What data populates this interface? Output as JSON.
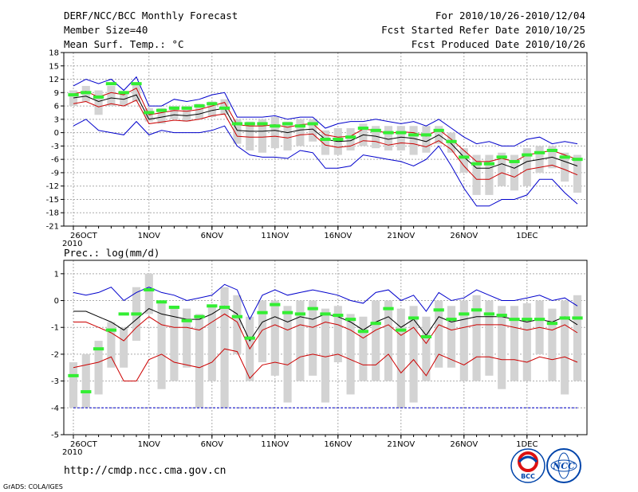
{
  "header": {
    "title": "DERF/NCC/BCC Monthly Forecast",
    "member_size": "Member Size=40",
    "variable_label": "Mean Surf. Temp.: °C",
    "forecast_range": "For 2010/10/26-2010/12/04",
    "fcst_started": "Fcst Started Refer Date 2010/10/25",
    "fcst_produced": "Fcst Produced Date 2010/10/26"
  },
  "footer": {
    "url": "http://cmdp.ncc.cma.gov.cn",
    "grads_credit": "GrADS: COLA/IGES",
    "logo_bcc_text": "BCC",
    "logo_ncc_text": "NCC"
  },
  "colors": {
    "grid": "#aaaaaa",
    "box": "#d3d3d3",
    "median": "#33ee33",
    "mean": "#000000",
    "red": "#cc0000",
    "blue": "#0000cc"
  },
  "chart_data": [
    {
      "type": "line",
      "title": "Mean Surf. Temp.: °C",
      "ylim": [
        -21,
        18
      ],
      "yticks": [
        "18",
        "15",
        "12",
        "9",
        "6",
        "3",
        "0",
        "-3",
        "-6",
        "-9",
        "-12",
        "-15",
        "-18",
        "-21"
      ],
      "xticks": [
        {
          "day": 0,
          "label": "26OCT"
        },
        {
          "day": 6,
          "label": "1NOV"
        },
        {
          "day": 11,
          "label": "6NOV"
        },
        {
          "day": 16,
          "label": "11NOV"
        },
        {
          "day": 21,
          "label": "16NOV"
        },
        {
          "day": 26,
          "label": "21NOV"
        },
        {
          "day": 31,
          "label": "26NOV"
        },
        {
          "day": 36,
          "label": "1DEC"
        }
      ],
      "year_label": "2010",
      "days": 40,
      "series": {
        "mean": [
          7.8,
          8.2,
          7.0,
          7.8,
          7.5,
          8.5,
          3.0,
          3.5,
          4.0,
          3.8,
          4.2,
          5.0,
          5.5,
          0.5,
          0.3,
          0.3,
          0.5,
          0.0,
          0.6,
          0.8,
          -1.5,
          -2.0,
          -1.8,
          -0.5,
          -0.8,
          -1.5,
          -1.0,
          -1.3,
          -2.0,
          -0.5,
          -2.5,
          -5.5,
          -8.0,
          -8.0,
          -7.0,
          -8.0,
          -6.5,
          -6.0,
          -5.5,
          -6.5,
          -7.5
        ],
        "red_upper": [
          8.7,
          9.3,
          8.0,
          9.0,
          8.5,
          10.0,
          4.0,
          4.5,
          5.0,
          4.8,
          5.2,
          6.0,
          6.8,
          1.8,
          1.5,
          1.5,
          1.8,
          1.2,
          1.8,
          2.0,
          -0.5,
          -1.0,
          -0.8,
          0.8,
          0.5,
          -0.2,
          0.2,
          0.0,
          -0.8,
          0.7,
          -1.5,
          -4.0,
          -6.5,
          -6.5,
          -5.8,
          -6.5,
          -5.0,
          -4.5,
          -4.0,
          -5.0,
          -6.0
        ],
        "red_lower": [
          6.5,
          7.0,
          5.8,
          6.5,
          6.0,
          7.3,
          2.0,
          2.4,
          2.8,
          2.6,
          3.0,
          3.8,
          4.2,
          -0.8,
          -1.0,
          -1.0,
          -0.8,
          -1.2,
          -0.5,
          -0.3,
          -2.8,
          -3.3,
          -3.0,
          -1.8,
          -2.0,
          -2.8,
          -2.3,
          -2.5,
          -3.2,
          -1.8,
          -3.8,
          -7.5,
          -10.5,
          -10.5,
          -9.0,
          -10.0,
          -8.3,
          -7.8,
          -7.3,
          -8.3,
          -9.5
        ],
        "blue_upper": [
          10.5,
          12.0,
          11.0,
          12.0,
          9.5,
          12.5,
          6.0,
          6.0,
          7.5,
          7.0,
          7.5,
          8.5,
          9.0,
          3.5,
          3.5,
          3.5,
          3.8,
          3.0,
          3.5,
          3.5,
          1.0,
          2.0,
          2.5,
          2.5,
          3.0,
          2.5,
          2.0,
          2.5,
          1.5,
          3.0,
          1.0,
          -1.0,
          -2.5,
          -2.0,
          -3.0,
          -3.0,
          -1.5,
          -1.0,
          -2.5,
          -2.0,
          -2.5
        ],
        "blue_lower": [
          1.5,
          3.0,
          0.5,
          0.0,
          -0.5,
          2.5,
          -0.5,
          0.5,
          0.0,
          0.0,
          0.0,
          0.5,
          1.5,
          -3.0,
          -5.0,
          -5.5,
          -5.5,
          -5.8,
          -4.0,
          -4.5,
          -8.0,
          -8.0,
          -7.5,
          -5.0,
          -5.5,
          -6.0,
          -6.5,
          -7.5,
          -6.0,
          -3.0,
          -7.5,
          -12.5,
          -16.5,
          -16.5,
          -15.0,
          -15.0,
          -14.0,
          -10.5,
          -10.5,
          -13.5,
          -16.0
        ],
        "box_q1": [
          6.0,
          7.0,
          4.0,
          6.0,
          6.0,
          7.0,
          2.5,
          2.0,
          3.0,
          2.5,
          3.0,
          3.5,
          4.0,
          -2.5,
          -4.0,
          -4.5,
          -3.5,
          -4.0,
          -3.0,
          -2.0,
          -5.0,
          -5.0,
          -4.0,
          -3.0,
          -3.5,
          -4.0,
          -4.0,
          -5.0,
          -4.5,
          -2.5,
          -4.5,
          -9.0,
          -14.0,
          -14.0,
          -12.0,
          -13.0,
          -12.0,
          -9.0,
          -8.0,
          -11.0,
          -13.5
        ],
        "box_q3": [
          9.5,
          10.5,
          9.5,
          10.5,
          9.0,
          11.0,
          5.5,
          5.5,
          6.0,
          6.0,
          6.5,
          7.0,
          7.5,
          3.0,
          2.5,
          3.0,
          3.5,
          2.5,
          3.0,
          3.0,
          0.5,
          1.0,
          1.0,
          2.0,
          1.5,
          1.5,
          1.5,
          1.5,
          1.5,
          1.5,
          0.0,
          -3.5,
          -5.0,
          -5.0,
          -4.5,
          -5.0,
          -3.5,
          -3.0,
          -3.0,
          -4.5,
          -5.0
        ],
        "median": [
          8.5,
          9.0,
          8.0,
          11.0,
          9.0,
          11.0,
          4.5,
          5.0,
          5.5,
          5.5,
          6.0,
          6.5,
          5.5,
          2.0,
          2.0,
          2.0,
          1.5,
          2.0,
          1.5,
          2.0,
          -1.5,
          -1.5,
          -1.0,
          1.0,
          0.5,
          0.0,
          0.0,
          -0.5,
          -0.5,
          0.5,
          -2.0,
          -5.5,
          -7.0,
          -7.0,
          -5.5,
          -6.5,
          -5.0,
          -4.5,
          -4.0,
          -5.5,
          -6.0
        ]
      }
    },
    {
      "type": "line",
      "title": "Prec.: log(mm/d)",
      "ylim": [
        -5,
        1.5
      ],
      "yticks": [
        "1",
        "0",
        "-1",
        "-2",
        "-3",
        "-4",
        "-5"
      ],
      "xticks": [
        {
          "day": 0,
          "label": "26OCT"
        },
        {
          "day": 6,
          "label": "1NOV"
        },
        {
          "day": 11,
          "label": "6NOV"
        },
        {
          "day": 16,
          "label": "11NOV"
        },
        {
          "day": 21,
          "label": "16NOV"
        },
        {
          "day": 26,
          "label": "21NOV"
        },
        {
          "day": 31,
          "label": "26NOV"
        },
        {
          "day": 36,
          "label": "1DEC"
        }
      ],
      "year_label": "2010",
      "days": 40,
      "series": {
        "mean": [
          -0.4,
          -0.4,
          -0.6,
          -0.8,
          -1.1,
          -0.7,
          -0.3,
          -0.5,
          -0.6,
          -0.7,
          -0.7,
          -0.5,
          -0.2,
          -0.5,
          -1.5,
          -0.8,
          -0.6,
          -0.8,
          -0.6,
          -0.7,
          -0.5,
          -0.6,
          -0.8,
          -1.1,
          -0.8,
          -0.6,
          -1.0,
          -0.7,
          -1.3,
          -0.6,
          -0.8,
          -0.7,
          -0.6,
          -0.6,
          -0.6,
          -0.7,
          -0.8,
          -0.7,
          -0.8,
          -0.6,
          -0.9
        ],
        "red_upper": [
          -0.8,
          -0.8,
          -1.0,
          -1.2,
          -1.5,
          -1.0,
          -0.6,
          -0.9,
          -1.0,
          -1.0,
          -1.1,
          -0.8,
          -0.5,
          -0.8,
          -1.8,
          -1.1,
          -0.9,
          -1.1,
          -0.9,
          -1.0,
          -0.8,
          -0.9,
          -1.1,
          -1.4,
          -1.1,
          -0.9,
          -1.3,
          -1.0,
          -1.6,
          -0.9,
          -1.1,
          -1.0,
          -0.9,
          -0.9,
          -0.9,
          -1.0,
          -1.1,
          -1.0,
          -1.1,
          -0.9,
          -1.2
        ],
        "red_lower": [
          -2.5,
          -2.4,
          -2.3,
          -2.1,
          -3.0,
          -3.0,
          -2.2,
          -2.0,
          -2.3,
          -2.4,
          -2.5,
          -2.3,
          -1.8,
          -1.9,
          -2.9,
          -2.4,
          -2.3,
          -2.4,
          -2.1,
          -2.0,
          -2.1,
          -2.0,
          -2.2,
          -2.4,
          -2.4,
          -2.0,
          -2.7,
          -2.2,
          -2.8,
          -2.0,
          -2.2,
          -2.4,
          -2.1,
          -2.1,
          -2.2,
          -2.2,
          -2.3,
          -2.1,
          -2.2,
          -2.1,
          -2.3
        ],
        "blue_upper": [
          0.3,
          0.2,
          0.3,
          0.5,
          0.0,
          0.3,
          0.5,
          0.3,
          0.2,
          0.0,
          0.1,
          0.2,
          0.6,
          0.4,
          -0.7,
          0.2,
          0.4,
          0.2,
          0.3,
          0.4,
          0.3,
          0.2,
          0.0,
          -0.1,
          0.3,
          0.4,
          0.0,
          0.2,
          -0.4,
          0.3,
          0.0,
          0.1,
          0.4,
          0.2,
          0.0,
          0.0,
          0.1,
          0.2,
          0.0,
          0.1,
          -0.2
        ],
        "box_q1": [
          -4.0,
          -4.0,
          -3.5,
          -2.5,
          -2.5,
          -1.5,
          -0.5,
          -3.3,
          -3.0,
          -2.5,
          -4.0,
          -3.0,
          -4.0,
          -2.0,
          -3.0,
          -2.3,
          -2.8,
          -3.8,
          -3.0,
          -2.8,
          -3.8,
          -2.3,
          -3.5,
          -3.0,
          -3.0,
          -3.0,
          -4.0,
          -3.8,
          -3.0,
          -2.5,
          -2.5,
          -3.0,
          -3.0,
          -2.8,
          -3.3,
          -3.0,
          -3.0,
          -2.0,
          -3.0,
          -3.5,
          -3.0
        ],
        "box_q3": [
          -2.3,
          -2.0,
          -1.5,
          -0.8,
          -1.0,
          0.5,
          1.0,
          0.0,
          -0.2,
          -0.3,
          -0.5,
          -0.2,
          0.5,
          0.2,
          -0.6,
          0.0,
          0.0,
          -0.2,
          0.0,
          0.0,
          -0.3,
          -0.2,
          -0.5,
          -0.6,
          0.0,
          0.0,
          -0.3,
          -0.2,
          -0.6,
          0.0,
          -0.2,
          0.0,
          0.2,
          0.0,
          -0.2,
          -0.2,
          -0.1,
          0.0,
          -0.3,
          0.0,
          0.2
        ],
        "median": [
          -2.8,
          -3.4,
          -1.8,
          -1.1,
          -0.5,
          -0.5,
          0.4,
          -0.05,
          -0.25,
          -0.75,
          -0.6,
          -0.2,
          -0.25,
          -0.6,
          -1.4,
          -0.45,
          -0.15,
          -0.45,
          -0.5,
          -0.3,
          -0.5,
          -0.55,
          -0.7,
          -1.15,
          -0.85,
          -0.3,
          -1.1,
          -0.65,
          -1.35,
          -0.35,
          -0.7,
          -0.5,
          -0.35,
          -0.5,
          -0.55,
          -0.7,
          -0.7,
          -0.7,
          -0.85,
          -0.65,
          -0.65
        ],
        "floor_line": -4.0
      }
    }
  ]
}
